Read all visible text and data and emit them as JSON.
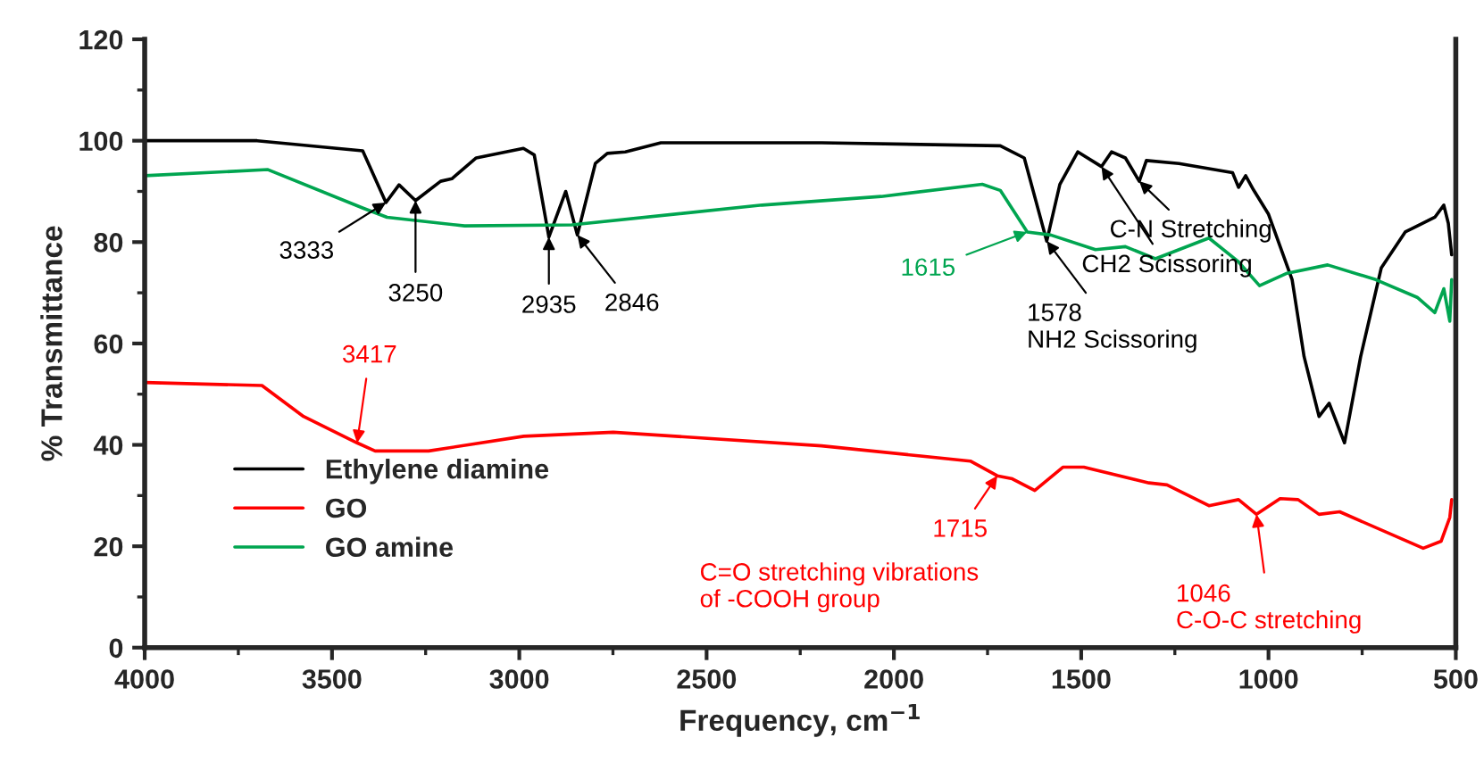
{
  "chart_data": {
    "type": "line",
    "xlabel": "Frequency, cm$^{−1}$",
    "ylabel": "% Transmittance",
    "xlim": [
      4000,
      500
    ],
    "xticks": [
      4000,
      3500,
      3000,
      2500,
      2000,
      1500,
      1000,
      500
    ],
    "ylim": [
      0,
      120
    ],
    "yticks": [
      0,
      20,
      40,
      60,
      80,
      100,
      120
    ],
    "grid": false,
    "legend": "bottom left",
    "marker": "none",
    "line_style": "solid",
    "series": [
      {
        "name": "Ethylene diamine",
        "color": "#000000",
        "x": [
          4000,
          3700,
          3418,
          3356,
          3321,
          3277,
          3210,
          3180,
          3115,
          2989,
          2960,
          2921,
          2876,
          2845,
          2797,
          2765,
          2717,
          2622,
          2193,
          1716,
          1652,
          1592,
          1557,
          1509,
          1446,
          1419,
          1382,
          1345,
          1326,
          1239,
          1096,
          1080,
          1061,
          1040,
          1000,
          937,
          905,
          865,
          838,
          797,
          754,
          699,
          635,
          556,
          532,
          520,
          511
        ],
        "values": [
          100,
          100,
          98,
          87.8,
          91.3,
          88.2,
          92,
          92.5,
          96.6,
          98.5,
          97.2,
          81,
          90,
          81.4,
          95.5,
          97.5,
          97.8,
          99.6,
          99.6,
          99,
          96.6,
          80.2,
          91.4,
          97.8,
          94.9,
          97.8,
          96.6,
          92,
          96.1,
          95.5,
          93.7,
          90.8,
          93.1,
          90.3,
          85.5,
          72.6,
          57.4,
          45.6,
          48.2,
          40.4,
          57.4,
          74.9,
          82,
          84.9,
          87.3,
          83.7,
          77.5
        ]
      },
      {
        "name": "GO",
        "color": "#ff0000",
        "x": [
          4000,
          3687,
          3576,
          3433,
          3385,
          3242,
          2988,
          2749,
          2193,
          1796,
          1724,
          1684,
          1624,
          1549,
          1493,
          1319,
          1271,
          1159,
          1080,
          1032,
          969,
          921,
          865,
          810,
          587,
          539,
          516,
          511
        ],
        "values": [
          52.3,
          51.7,
          45.6,
          40.4,
          38.8,
          38.8,
          41.7,
          42.5,
          39.8,
          36.8,
          33.9,
          33.3,
          31,
          35.6,
          35.6,
          32.5,
          32.1,
          28,
          29.2,
          26.3,
          29.4,
          29.2,
          26.3,
          26.8,
          19.6,
          21,
          25.7,
          29.2
        ]
      },
      {
        "name": "GO amine",
        "color": "#00a550",
        "x": [
          4000,
          3671,
          3417,
          3353,
          3146,
          2860,
          2352,
          2034,
          1764,
          1716,
          1644,
          1581,
          1462,
          1382,
          1302,
          1159,
          1080,
          1024,
          953,
          842,
          714,
          603,
          556,
          532,
          516,
          511
        ],
        "values": [
          93.1,
          94.3,
          86.7,
          84.9,
          83.2,
          83.4,
          87.3,
          89,
          91.4,
          90.2,
          82,
          81.4,
          78.5,
          79.1,
          76.7,
          80.8,
          76.1,
          71.4,
          73.8,
          75.5,
          72.6,
          69.1,
          66.1,
          70.8,
          64.4,
          72.6
        ]
      }
    ],
    "annotations": [
      {
        "text": "3333",
        "x": 3356,
        "y": 87.8
      },
      {
        "text": "3250",
        "x": 3277,
        "y": 88.2
      },
      {
        "text": "2935",
        "x": 2921,
        "y": 81
      },
      {
        "text": "2846",
        "x": 2845,
        "y": 81.4
      },
      {
        "text": "3417",
        "x": 3433,
        "y": 40.4
      },
      {
        "text": "1615",
        "x": 1644,
        "y": 82
      },
      {
        "text": "1578\nNH2 Scissoring",
        "x": 1592,
        "y": 80.2
      },
      {
        "text": "CH2 Scissoring",
        "x": 1446,
        "y": 94.9
      },
      {
        "text": "C-N Stretching",
        "x": 1345,
        "y": 92
      },
      {
        "text": "1715",
        "x": 1724,
        "y": 33.9
      },
      "C=O stretching vibrations\nof -COOH group",
      {
        "text": "1046\nC-O-C stretching",
        "x": 1032,
        "y": 26.3
      }
    ]
  }
}
